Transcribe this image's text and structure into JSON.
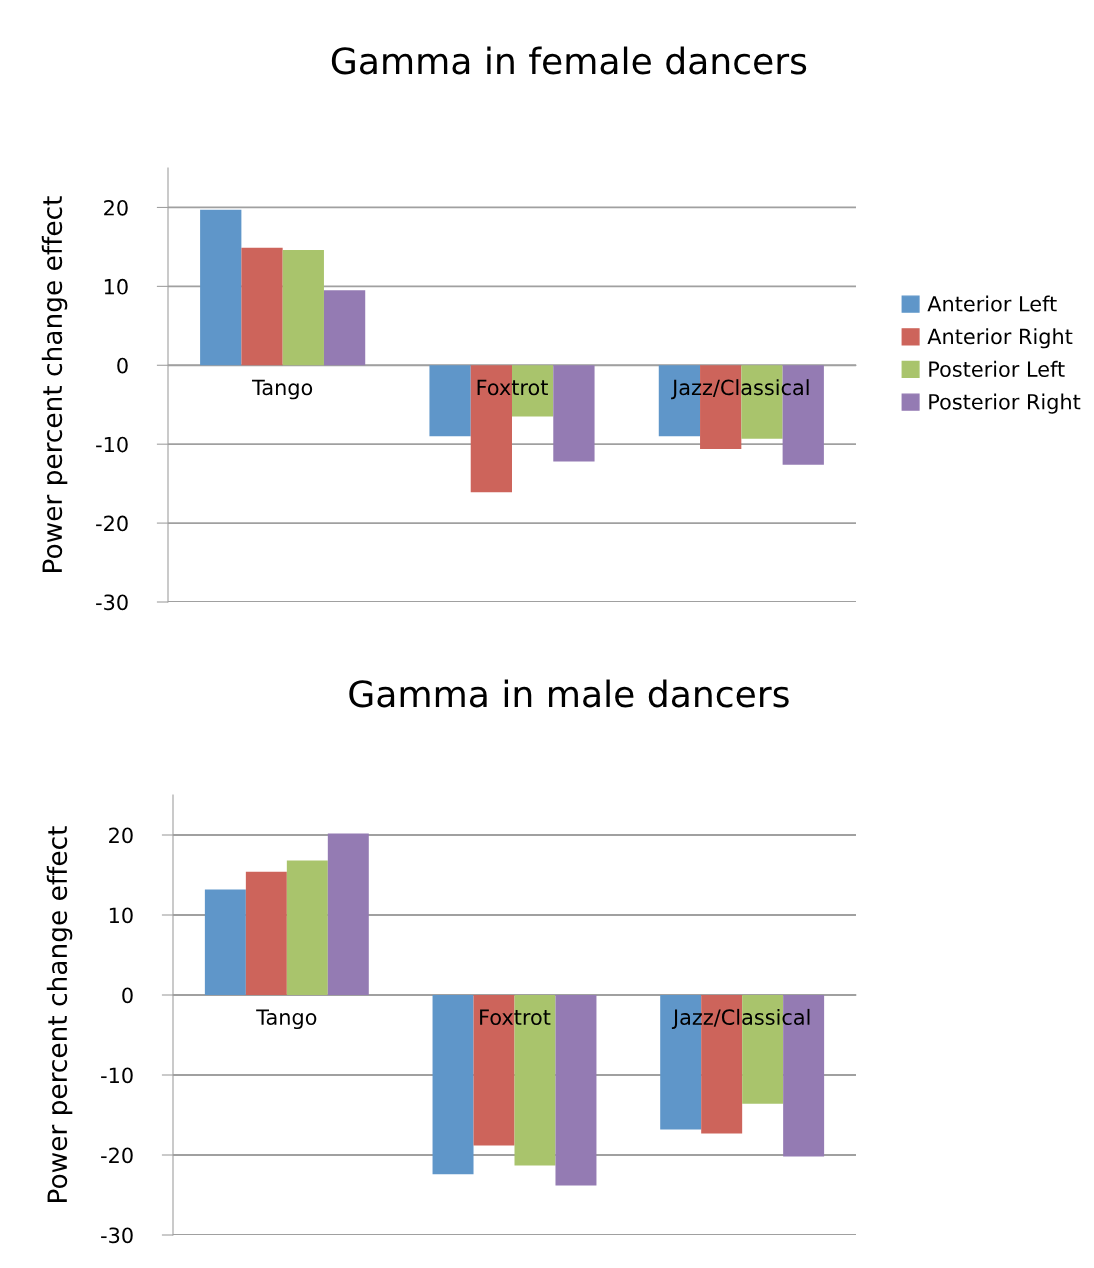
{
  "chart_data": [
    {
      "type": "bar",
      "title": "Gamma in female dancers",
      "ylabel": "Power percent change effect",
      "categories": [
        "Tango",
        "Foxtrot",
        "Jazz/Classical"
      ],
      "series": [
        {
          "name": "Anterior Left",
          "color": "#5f96c9",
          "values": [
            19.7,
            -9.0,
            -9.0
          ]
        },
        {
          "name": "Anterior Right",
          "color": "#cd645b",
          "values": [
            14.9,
            -16.1,
            -10.6
          ]
        },
        {
          "name": "Posterior Left",
          "color": "#a9c46c",
          "values": [
            14.6,
            -6.5,
            -9.3
          ]
        },
        {
          "name": "Posterior Right",
          "color": "#947bb3",
          "values": [
            9.5,
            -12.2,
            -12.6
          ]
        }
      ],
      "ylim": [
        -30,
        25
      ],
      "yticks": [
        -30,
        -20,
        -10,
        0,
        10,
        20
      ],
      "grid": "y",
      "legend": "right"
    },
    {
      "type": "bar",
      "title": "Gamma in male dancers",
      "ylabel": "Power percent change effect",
      "categories": [
        "Tango",
        "Foxtrot",
        "Jazz/Classical"
      ],
      "series": [
        {
          "color": "#5f96c9",
          "values": [
            13.2,
            -22.4,
            -16.8
          ]
        },
        {
          "color": "#cd645b",
          "values": [
            15.4,
            -18.8,
            -17.3
          ]
        },
        {
          "color": "#a9c46c",
          "values": [
            16.8,
            -21.3,
            -13.6
          ]
        },
        {
          "color": "#947bb3",
          "values": [
            20.2,
            -23.8,
            -20.2
          ]
        }
      ],
      "ylim": [
        -30,
        25
      ],
      "yticks": [
        -30,
        -20,
        -10,
        0,
        10,
        20
      ],
      "grid": "y"
    }
  ]
}
